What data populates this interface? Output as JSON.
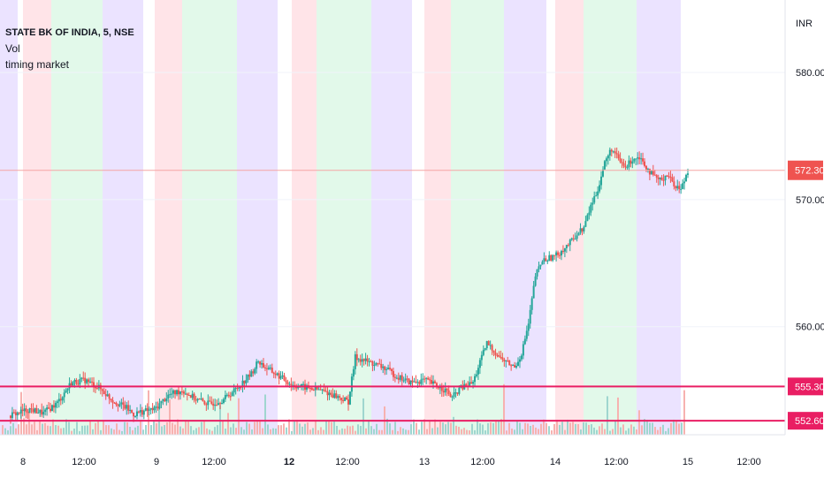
{
  "legend": {
    "symbol": "STATE BK OF INDIA, 5, NSE",
    "study1": "Vol",
    "study2": "timing market"
  },
  "colors": {
    "up": "#26a69a",
    "down": "#ef5350",
    "band_red": "#ffe4e8",
    "band_green": "#e2f9ea",
    "band_purple": "#ebe3ff",
    "band_white": "#ffffff",
    "last_price": "#ef5350",
    "level_line": "#e91e63",
    "level_label": "#e91e63",
    "grid": "#f0f3fa",
    "axis_text": "#131722"
  },
  "chart_data": {
    "type": "candlestick",
    "currency": "INR",
    "ylim": [
      551.5,
      585
    ],
    "y_ticks": [
      "580.00",
      "570.00",
      "560.00"
    ],
    "x_ticks": [
      "8",
      "12:00",
      "9",
      "12:00",
      "12",
      "12:00",
      "13",
      "12:00",
      "14",
      "12:00",
      "15",
      "12:00"
    ],
    "x_ticks_bold": [
      "12"
    ],
    "last_price": "572.30",
    "levels": [
      "555.30",
      "552.60"
    ],
    "close_path": [
      [
        0,
        553.0
      ],
      [
        6,
        553.5
      ],
      [
        10,
        553.2
      ],
      [
        14,
        554.0
      ],
      [
        18,
        555.6
      ],
      [
        22,
        555.8
      ],
      [
        26,
        555.2
      ],
      [
        30,
        554.2
      ],
      [
        34,
        553.6
      ],
      [
        36,
        553.1
      ],
      [
        38,
        553.3
      ],
      [
        42,
        553.5
      ],
      [
        46,
        554.6
      ],
      [
        50,
        555.0
      ],
      [
        54,
        554.3
      ],
      [
        58,
        553.9
      ],
      [
        62,
        554.3
      ],
      [
        66,
        555.2
      ],
      [
        70,
        556.3
      ],
      [
        72,
        557.3
      ],
      [
        74,
        556.8
      ],
      [
        78,
        556.1
      ],
      [
        82,
        555.4
      ],
      [
        86,
        555.2
      ],
      [
        90,
        555.0
      ],
      [
        94,
        554.6
      ],
      [
        98,
        554.1
      ],
      [
        100,
        557.6
      ],
      [
        104,
        557.2
      ],
      [
        108,
        556.8
      ],
      [
        112,
        556.1
      ],
      [
        116,
        555.6
      ],
      [
        120,
        555.8
      ],
      [
        124,
        555.3
      ],
      [
        126,
        555.0
      ],
      [
        128,
        554.4
      ],
      [
        130,
        555.1
      ],
      [
        134,
        555.6
      ],
      [
        136,
        557.2
      ],
      [
        138,
        558.7
      ],
      [
        142,
        557.5
      ],
      [
        146,
        556.8
      ],
      [
        148,
        557.9
      ],
      [
        150,
        560.2
      ],
      [
        152,
        564.0
      ],
      [
        154,
        565.2
      ],
      [
        158,
        565.6
      ],
      [
        162,
        566.6
      ],
      [
        164,
        567.3
      ],
      [
        166,
        567.8
      ],
      [
        168,
        569.5
      ],
      [
        170,
        570.8
      ],
      [
        172,
        572.9
      ],
      [
        174,
        574.0
      ],
      [
        176,
        573.1
      ],
      [
        178,
        572.5
      ],
      [
        180,
        573.2
      ],
      [
        182,
        573.4
      ],
      [
        184,
        572.6
      ],
      [
        186,
        571.8
      ],
      [
        188,
        571.5
      ],
      [
        190,
        572.0
      ],
      [
        192,
        571.2
      ],
      [
        194,
        570.8
      ],
      [
        196,
        572.3
      ]
    ],
    "volume_note": "volume bars along bottom"
  }
}
